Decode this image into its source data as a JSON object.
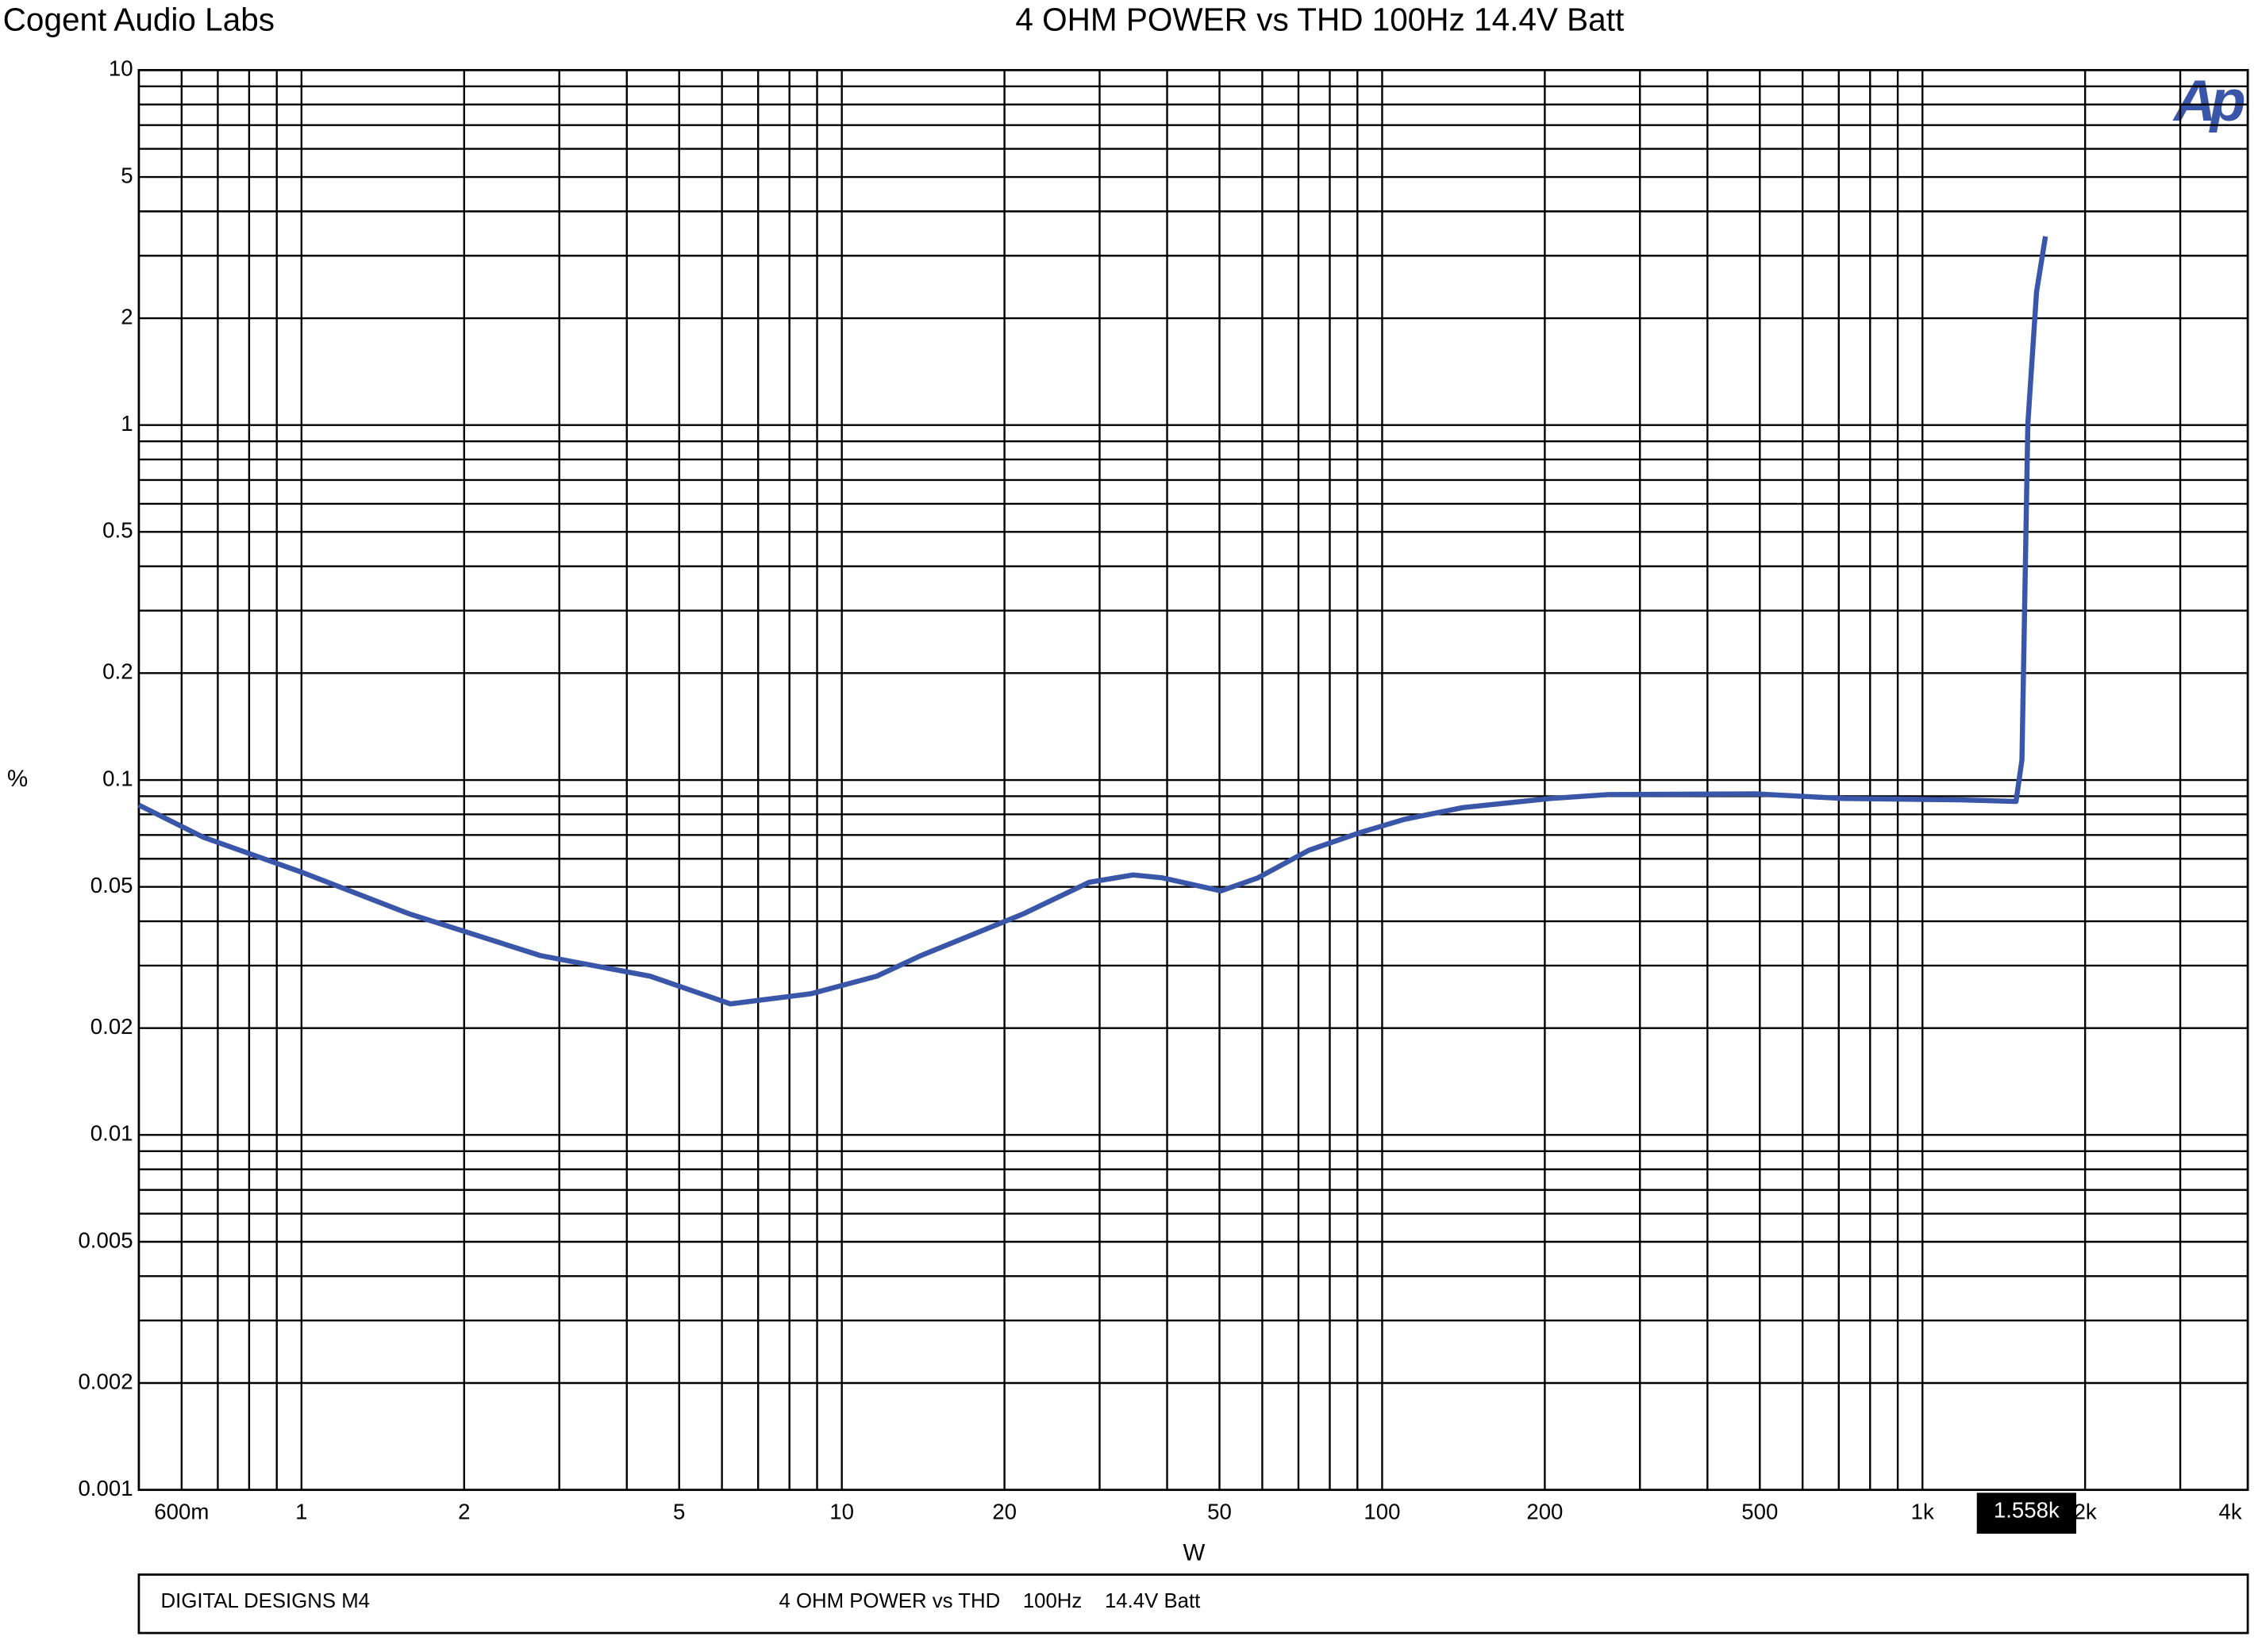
{
  "chart_data": {
    "type": "line",
    "company": "Cogent Audio Labs",
    "title": "4 OHM POWER vs THD  100Hz  14.4V Batt",
    "logo": "Ap",
    "x_label": "W",
    "y_label": "%",
    "log_x": true,
    "log_y": true,
    "grid": true,
    "xlim": [
      0.5,
      4000
    ],
    "ylim": [
      0.001,
      10
    ],
    "xticks": [
      {
        "value": 0.6,
        "label": "600m"
      },
      1,
      2,
      5,
      10,
      20,
      50,
      100,
      200,
      500,
      {
        "value": 1000,
        "label": "1k"
      },
      {
        "value": 2000,
        "label": "2k"
      },
      {
        "value": 4000,
        "label": "4k"
      }
    ],
    "yticks": [
      10,
      5,
      2,
      1,
      0.5,
      0.2,
      0.1,
      0.05,
      0.02,
      0.01,
      0.005,
      0.002,
      0.001
    ],
    "xgrid": [
      0.6,
      0.7,
      0.8,
      0.9,
      1,
      2,
      3,
      4,
      5,
      6,
      7,
      8,
      9,
      10,
      20,
      30,
      40,
      50,
      60,
      70,
      80,
      90,
      100,
      200,
      300,
      400,
      500,
      600,
      700,
      800,
      900,
      1000,
      2000,
      3000,
      4000
    ],
    "ygrid": [
      0.001,
      0.002,
      0.003,
      0.004,
      0.005,
      0.006,
      0.007,
      0.008,
      0.009,
      0.01,
      0.02,
      0.03,
      0.04,
      0.05,
      0.06,
      0.07,
      0.08,
      0.09,
      0.1,
      0.2,
      0.3,
      0.4,
      0.5,
      0.6,
      0.7,
      0.8,
      0.9,
      1,
      2,
      3,
      4,
      5,
      6,
      7,
      8,
      9,
      10
    ],
    "cursor": {
      "value": 1558,
      "label": "1.558k"
    },
    "series": [
      {
        "name": "THD",
        "color": "#3a56a8",
        "x": [
          0.5,
          0.658,
          1,
          1.58,
          2.77,
          4.42,
          6.22,
          8.77,
          11.6,
          14.0,
          17.4,
          21.7,
          28.7,
          34.6,
          39.2,
          50.3,
          58.9,
          73.2,
          91.0,
          110,
          141,
          205,
          263,
          491,
          714,
          1175,
          1490,
          1528,
          1567,
          1626,
          1689
        ],
        "values": [
          0.085,
          0.069,
          0.055,
          0.042,
          0.032,
          0.028,
          0.0234,
          0.025,
          0.028,
          0.032,
          0.0366,
          0.042,
          0.0515,
          0.054,
          0.053,
          0.0487,
          0.053,
          0.0634,
          0.0711,
          0.0775,
          0.0836,
          0.0887,
          0.091,
          0.0914,
          0.0887,
          0.0879,
          0.087,
          0.114,
          1.01,
          2.37,
          3.4
        ]
      }
    ],
    "footer": {
      "left": "DIGITAL DESIGNS M4",
      "right": "4 OHM POWER vs THD    100Hz    14.4V Batt"
    }
  }
}
